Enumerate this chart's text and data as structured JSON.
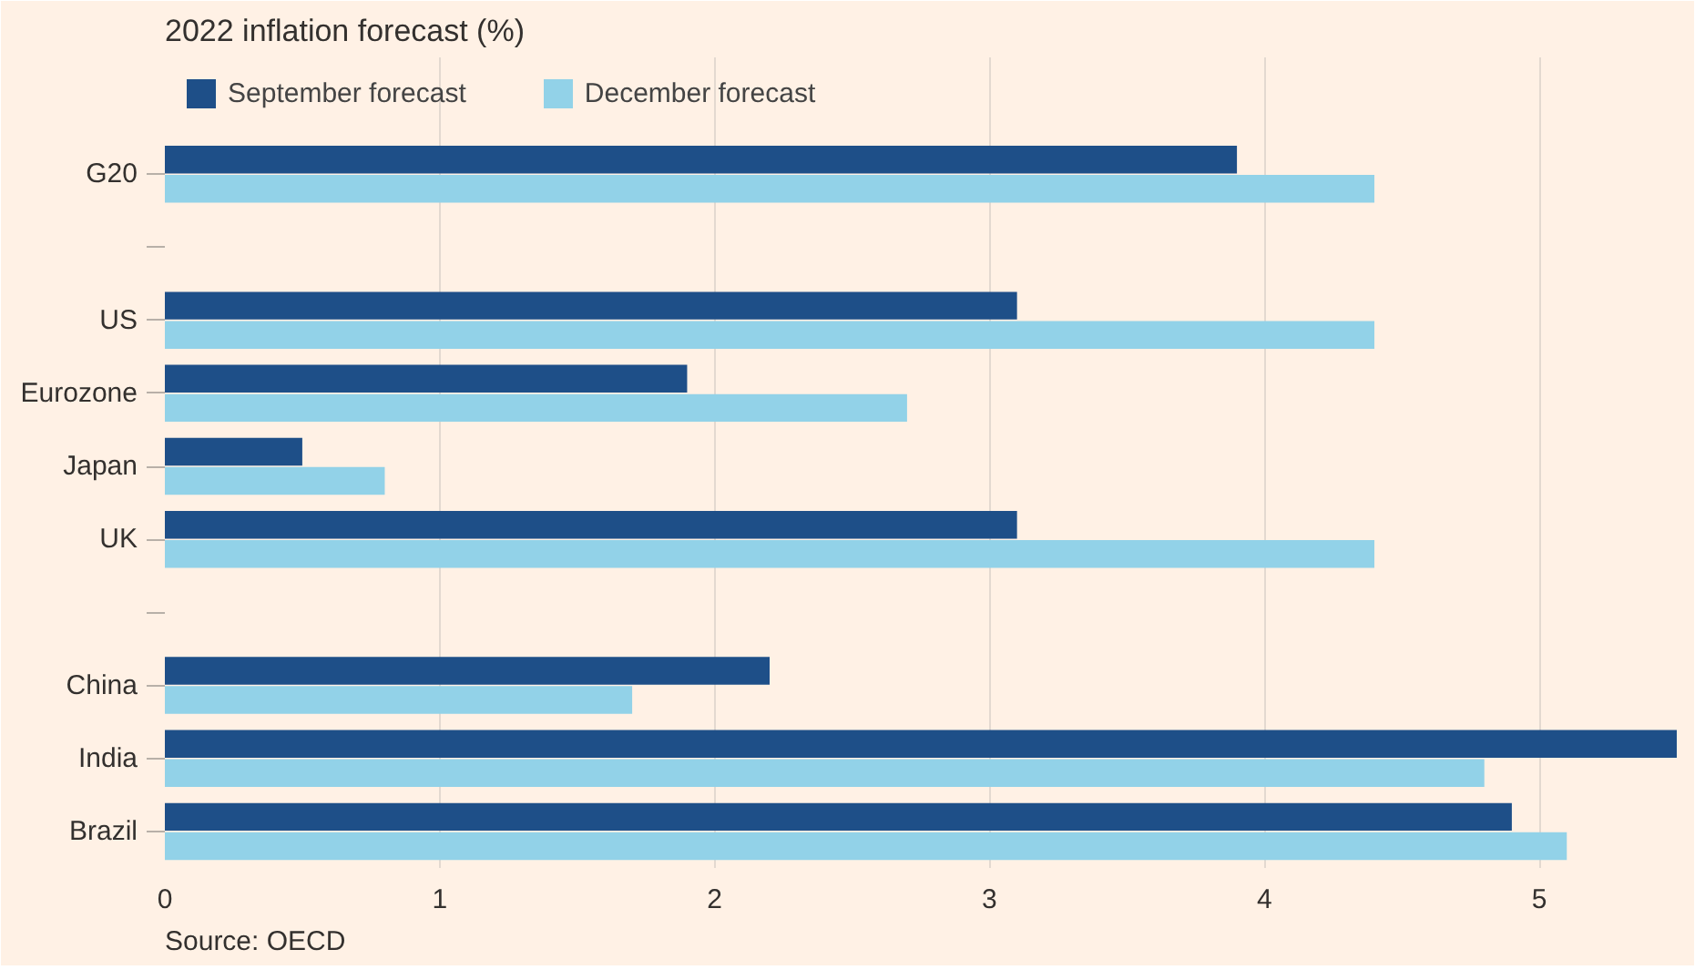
{
  "chart_data": {
    "type": "bar",
    "orientation": "horizontal",
    "title": "2022 inflation forecast (%)",
    "categories": [
      "G20",
      null,
      "US",
      "Eurozone",
      "Japan",
      "UK",
      null,
      "China",
      "India",
      "Brazil"
    ],
    "series": [
      {
        "name": "September forecast",
        "color": "#1e4f88",
        "values": [
          3.9,
          null,
          3.1,
          1.9,
          0.5,
          3.1,
          null,
          2.2,
          5.5,
          4.9
        ]
      },
      {
        "name": "December forecast",
        "color": "#92d2e8",
        "values": [
          4.4,
          null,
          4.4,
          2.7,
          0.8,
          4.4,
          null,
          1.7,
          4.8,
          5.1
        ]
      }
    ],
    "xlim": [
      0,
      5.5
    ],
    "xticks": [
      0,
      1,
      2,
      3,
      4,
      5
    ],
    "grid": "x",
    "legend": "top left",
    "annotations": [
      "Source: OECD"
    ]
  }
}
